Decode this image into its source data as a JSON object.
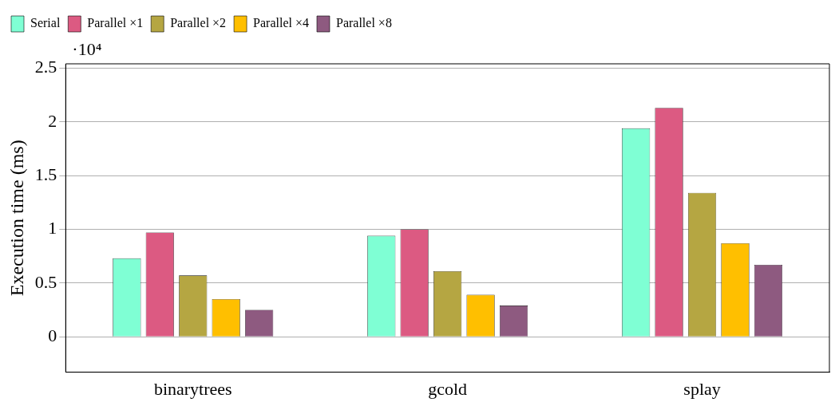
{
  "chart_data": {
    "type": "bar",
    "ylabel": "Execution time (ms)",
    "annotations": [
      "·10⁴"
    ],
    "categories": [
      "binarytrees",
      "gcold",
      "splay"
    ],
    "series": [
      {
        "name": "Serial",
        "color": "#7fffd4",
        "values": [
          0.73,
          0.94,
          1.94
        ]
      },
      {
        "name": "Parallel ×1",
        "color": "#dc5a82",
        "values": [
          0.97,
          1.0,
          2.13
        ]
      },
      {
        "name": "Parallel ×2",
        "color": "#b5a642",
        "values": [
          0.57,
          0.61,
          1.34
        ]
      },
      {
        "name": "Parallel ×4",
        "color": "#ffbf00",
        "values": [
          0.35,
          0.39,
          0.87
        ]
      },
      {
        "name": "Parallel ×8",
        "color": "#8e5a80",
        "values": [
          0.25,
          0.29,
          0.67
        ]
      }
    ],
    "ylim": [
      -0.33,
      2.54
    ],
    "yticks": [
      0,
      0.5,
      1,
      1.5,
      2,
      2.5
    ],
    "grid": "y",
    "legend": "top left"
  }
}
